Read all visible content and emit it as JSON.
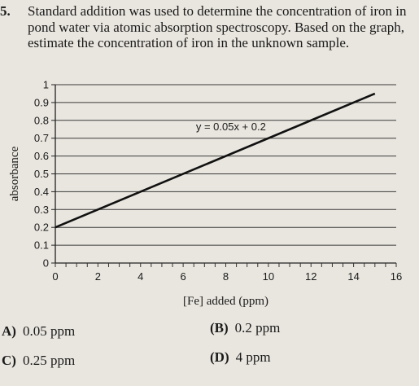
{
  "question": {
    "number": "5.",
    "text": "Standard addition was used to determine the concentration of iron in pond water via atomic absorption spectroscopy. Based on the graph, estimate the concentration of iron in the unknown sample."
  },
  "chart_data": {
    "type": "line",
    "xlabel": "[Fe] added (ppm)",
    "ylabel": "absorbance",
    "xlim": [
      0,
      16
    ],
    "ylim": [
      0,
      1
    ],
    "x_ticks": [
      "0",
      "2",
      "4",
      "6",
      "8",
      "10",
      "12",
      "14",
      "16"
    ],
    "y_ticks": [
      "0",
      "0.1",
      "0.2",
      "0.3",
      "0.4",
      "0.5",
      "0.6",
      "0.7",
      "0.8",
      "0.9",
      "1"
    ],
    "grid": true,
    "series": [
      {
        "x": [
          0,
          15
        ],
        "y": [
          0.2,
          0.95
        ]
      }
    ],
    "annotation": "y = 0.05x + 0.2"
  },
  "answers": [
    {
      "letter": "A)",
      "text": "0.05 ppm"
    },
    {
      "letter": "(B)",
      "text": "0.2 ppm"
    },
    {
      "letter": "C)",
      "text": "0.25 ppm"
    },
    {
      "letter": "(D)",
      "text": "4 ppm"
    }
  ]
}
